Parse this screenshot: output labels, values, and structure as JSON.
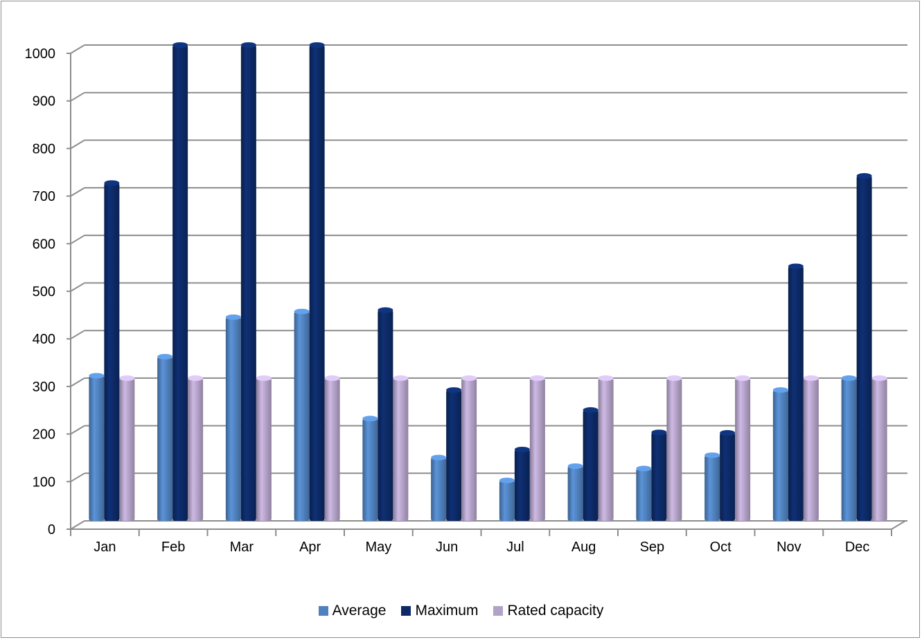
{
  "chart_data": {
    "type": "bar",
    "categories": [
      "Jan",
      "Feb",
      "Mar",
      "Apr",
      "May",
      "Jun",
      "Jul",
      "Aug",
      "Sep",
      "Oct",
      "Nov",
      "Dec"
    ],
    "series": [
      {
        "name": "Average",
        "color": "#4f81bd",
        "values": [
          305,
          345,
          428,
          440,
          215,
          133,
          85,
          115,
          110,
          138,
          275,
          300
        ]
      },
      {
        "name": "Maximum",
        "color": "#0d2a66",
        "values": [
          710,
          1000,
          1000,
          1000,
          443,
          275,
          150,
          233,
          186,
          185,
          535,
          725
        ]
      },
      {
        "name": "Rated capacity",
        "color": "#b3a2c7",
        "values": [
          300,
          300,
          300,
          300,
          300,
          300,
          300,
          300,
          300,
          300,
          300,
          300
        ]
      }
    ],
    "yticks": [
      0,
      100,
      200,
      300,
      400,
      500,
      600,
      700,
      800,
      900,
      1000
    ],
    "ylim": [
      0,
      1000
    ],
    "grid": true,
    "legend_position": "bottom",
    "style": "3d-column"
  }
}
